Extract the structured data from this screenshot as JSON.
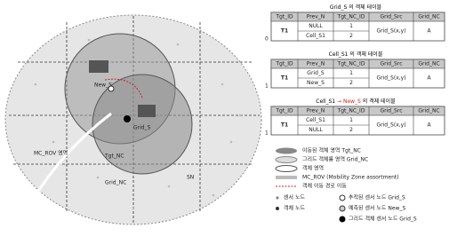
{
  "diagram": {
    "labels": {
      "new_s": "New_S",
      "grid_s": "Grid_S",
      "mc_rov": "MC_ROV 영역",
      "tgt_nc": "Tgt_NC",
      "grid_nc": "Grid_NC",
      "sn": "SN"
    }
  },
  "tables": [
    {
      "side": "0",
      "title": [
        {
          "text": "Grid_S 의 객체 테이블",
          "color": "#000"
        }
      ],
      "header": [
        "Tgt_ID",
        "Prev_N",
        "Tgt_NC_ID",
        "Grid_Src",
        "Grid_NC"
      ],
      "tgt": "T1",
      "prev": [
        "NULL",
        "Cell_S1"
      ],
      "nc": [
        "1",
        "2"
      ],
      "src": "Grid_S(x,y)",
      "gnc": "A"
    },
    {
      "side": "1",
      "title": [
        {
          "text": "Cell_S1 의 객체 테이블",
          "color": "#000"
        }
      ],
      "header": [
        "Tgt_ID",
        "Prev_N",
        "Tgt_NC_ID",
        "Grid_Src",
        "Grid_NC"
      ],
      "tgt": "T1",
      "prev": [
        "Grid_S",
        "New_S"
      ],
      "nc": [
        "1",
        "2"
      ],
      "src": "Grid_S(x,y)",
      "gnc": "A"
    },
    {
      "side": "1",
      "title": [
        {
          "text": "Cell_S1",
          "color": "#000"
        },
        {
          "text": " → New_S",
          "color": "#d02020"
        },
        {
          "text": " 의 객체 테이블",
          "color": "#000"
        }
      ],
      "header": [
        "Tgt_ID",
        "Prev_N",
        "Tgt_NC_ID",
        "Grid_Src",
        "Grid_NC"
      ],
      "tgt": "T1",
      "prev": [
        "Cell_S1",
        "NULL"
      ],
      "nc": [
        "1",
        "2"
      ],
      "src": "Grid_S(x,y)",
      "gnc": "A"
    }
  ],
  "legend": [
    {
      "text": "이동된 객체 영역 Tgt_NC"
    },
    {
      "text": "그리드 객체를 영역 Grid_NC"
    },
    {
      "text": "객체 영역"
    },
    {
      "text": "MC_ROV (Mobility Zone assortment)"
    },
    {
      "text": "객체 이동 경로 이동"
    }
  ],
  "legend_nodes": [
    {
      "text": "센서 노드"
    },
    {
      "text": "추적된 센서 노드 Grid_S"
    },
    {
      "text": "객체 노드"
    },
    {
      "text": "예측된 센서 노드 New_S"
    },
    {
      "text": "그리드 객체 센서 노드 Grid_S"
    }
  ]
}
